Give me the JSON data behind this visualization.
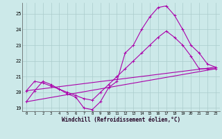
{
  "xlabel": "Windchill (Refroidissement éolien,°C)",
  "bg_color": "#cce9e9",
  "grid_color": "#aacccc",
  "line_color": "#aa00aa",
  "ylim_min": 18.8,
  "ylim_max": 25.7,
  "xlim_min": -0.5,
  "xlim_max": 23.5,
  "yticks": [
    19,
    20,
    21,
    22,
    23,
    24,
    25
  ],
  "xticks": [
    0,
    1,
    2,
    3,
    4,
    5,
    6,
    7,
    8,
    9,
    10,
    11,
    12,
    13,
    14,
    15,
    16,
    17,
    18,
    19,
    20,
    21,
    22,
    23
  ],
  "line1_x": [
    0,
    1,
    2,
    3,
    4,
    5,
    6,
    7,
    8,
    9,
    10,
    11,
    12,
    13,
    14,
    15,
    16,
    17,
    18,
    19,
    20,
    21,
    22,
    23
  ],
  "line1_y": [
    19.4,
    20.1,
    20.7,
    20.5,
    20.2,
    19.9,
    19.7,
    19.0,
    18.9,
    19.4,
    20.3,
    20.7,
    22.5,
    23.0,
    24.0,
    24.8,
    25.4,
    25.5,
    24.9,
    24.0,
    23.0,
    22.5,
    21.8,
    21.6
  ],
  "line2_x": [
    0,
    1,
    2,
    3,
    4,
    5,
    6,
    7,
    8,
    9,
    10,
    11,
    12,
    13,
    14,
    15,
    16,
    17,
    18,
    19,
    20,
    21,
    22,
    23
  ],
  "line2_y": [
    20.1,
    20.7,
    20.6,
    20.4,
    20.2,
    20.0,
    19.8,
    19.6,
    19.5,
    20.0,
    20.5,
    21.0,
    21.5,
    22.0,
    22.5,
    23.0,
    23.5,
    23.9,
    23.5,
    23.0,
    22.3,
    21.5,
    21.5,
    21.5
  ],
  "line3_x": [
    0,
    23
  ],
  "line3_y": [
    19.4,
    21.5
  ],
  "line4_x": [
    0,
    23
  ],
  "line4_y": [
    20.1,
    21.6
  ]
}
